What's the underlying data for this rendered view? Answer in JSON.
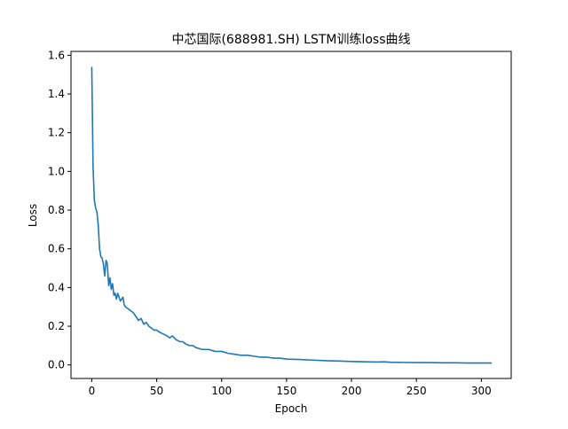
{
  "chart_data": {
    "type": "line",
    "title": "中芯国际(688981.SH) LSTM训练loss曲线",
    "xlabel": "Epoch",
    "ylabel": "Loss",
    "xlim": [
      -16,
      323
    ],
    "ylim": [
      -0.07,
      1.62
    ],
    "xticks": [
      0,
      50,
      100,
      150,
      200,
      250,
      300
    ],
    "yticks": [
      0.0,
      0.2,
      0.4,
      0.6,
      0.8,
      1.0,
      1.2,
      1.4,
      1.6
    ],
    "xtick_labels": [
      "0",
      "50",
      "100",
      "150",
      "200",
      "250",
      "300"
    ],
    "ytick_labels": [
      "0.0",
      "0.2",
      "0.4",
      "0.6",
      "0.8",
      "1.0",
      "1.2",
      "1.4",
      "1.6"
    ],
    "grid": false,
    "legend": "none",
    "series": [
      {
        "color": "#1f77b4",
        "x": [
          0,
          1,
          2,
          3,
          4,
          5,
          6,
          7,
          8,
          9,
          10,
          11,
          12,
          13,
          14,
          15,
          16,
          17,
          18,
          19,
          20,
          22,
          24,
          25,
          26,
          28,
          30,
          32,
          34,
          36,
          38,
          40,
          42,
          44,
          46,
          48,
          50,
          52,
          55,
          58,
          60,
          62,
          65,
          68,
          70,
          72,
          75,
          78,
          80,
          85,
          90,
          95,
          100,
          105,
          110,
          115,
          120,
          125,
          130,
          135,
          140,
          145,
          150,
          160,
          170,
          180,
          190,
          200,
          210,
          220,
          225,
          230,
          240,
          250,
          260,
          270,
          280,
          290,
          300,
          308
        ],
        "values": [
          1.54,
          1.02,
          0.85,
          0.81,
          0.79,
          0.72,
          0.6,
          0.56,
          0.55,
          0.52,
          0.46,
          0.54,
          0.52,
          0.41,
          0.45,
          0.39,
          0.42,
          0.36,
          0.37,
          0.34,
          0.37,
          0.33,
          0.35,
          0.31,
          0.3,
          0.29,
          0.28,
          0.27,
          0.25,
          0.23,
          0.24,
          0.21,
          0.22,
          0.2,
          0.19,
          0.18,
          0.18,
          0.17,
          0.16,
          0.15,
          0.14,
          0.15,
          0.13,
          0.12,
          0.12,
          0.11,
          0.1,
          0.1,
          0.09,
          0.08,
          0.08,
          0.07,
          0.07,
          0.06,
          0.055,
          0.05,
          0.05,
          0.045,
          0.04,
          0.04,
          0.035,
          0.035,
          0.03,
          0.028,
          0.025,
          0.022,
          0.02,
          0.018,
          0.016,
          0.015,
          0.016,
          0.014,
          0.013,
          0.012,
          0.012,
          0.011,
          0.011,
          0.01,
          0.01,
          0.01
        ]
      }
    ]
  }
}
